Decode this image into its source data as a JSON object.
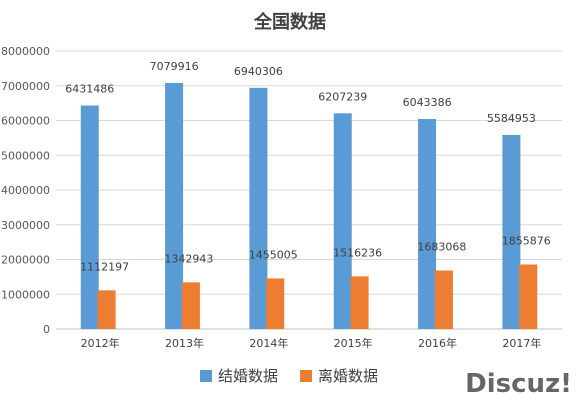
{
  "chart_data": {
    "type": "bar",
    "title": "全国数据",
    "categories": [
      "2012年",
      "2013年",
      "2014年",
      "2015年",
      "2016年",
      "2017年"
    ],
    "series": [
      {
        "name": "结婚数据",
        "color": "#5b9bd5",
        "values": [
          6431486,
          7079916,
          6940306,
          6207239,
          6043386,
          5584953
        ]
      },
      {
        "name": "离婚数据",
        "color": "#ed7d31",
        "values": [
          1112197,
          1342943,
          1455005,
          1516236,
          1683068,
          1855876
        ]
      }
    ],
    "ylim": [
      0,
      8000000
    ],
    "yticks": [
      "0",
      "1000000",
      "2000000",
      "3000000",
      "4000000",
      "5000000",
      "6000000",
      "7000000",
      "8000000"
    ],
    "grid": true,
    "legend": "bottom",
    "data_labels": true
  },
  "watermark": {
    "text": "Discuz!"
  }
}
